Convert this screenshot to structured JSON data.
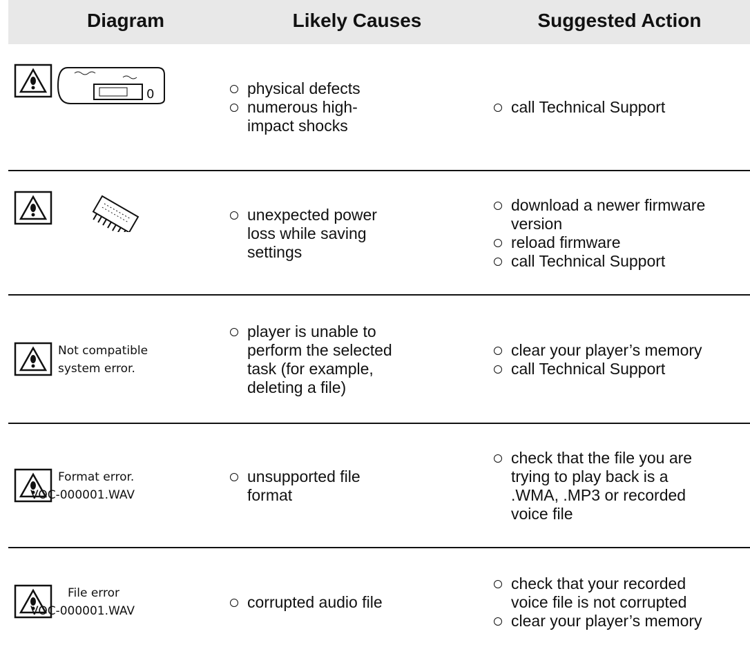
{
  "table": {
    "columns": [
      "Diagram",
      "Likely Causes",
      "Suggested Action"
    ],
    "rows": [
      {
        "causes": [
          "physical defects",
          "numerous high-impact shocks"
        ],
        "actions": [
          "call Technical Support"
        ]
      },
      {
        "causes": [
          "unexpected power loss while saving settings"
        ],
        "actions": [
          "download a newer firmware version",
          "reload firmware",
          "call Technical Support"
        ]
      },
      {
        "diagram": [
          "Not compatible",
          "system error."
        ],
        "causes": [
          "player is unable to perform the selected task (for example, deleting a file)"
        ],
        "actions": [
          "clear your player’s memory",
          "call Technical Support"
        ]
      },
      {
        "diagram": [
          "Format error.",
          "VOC-000001.WAV"
        ],
        "causes": [
          "unsupported file format"
        ],
        "actions": [
          "check that the file you are trying to play back is a .WMA, .MP3 or recorded voice file"
        ]
      },
      {
        "diagram": [
          "File error",
          "VOC-000001.WAV"
        ],
        "causes": [
          "corrupted audio file"
        ],
        "actions": [
          "check that your recorded voice file is not corrupted",
          "clear your player’s memory"
        ]
      }
    ]
  }
}
